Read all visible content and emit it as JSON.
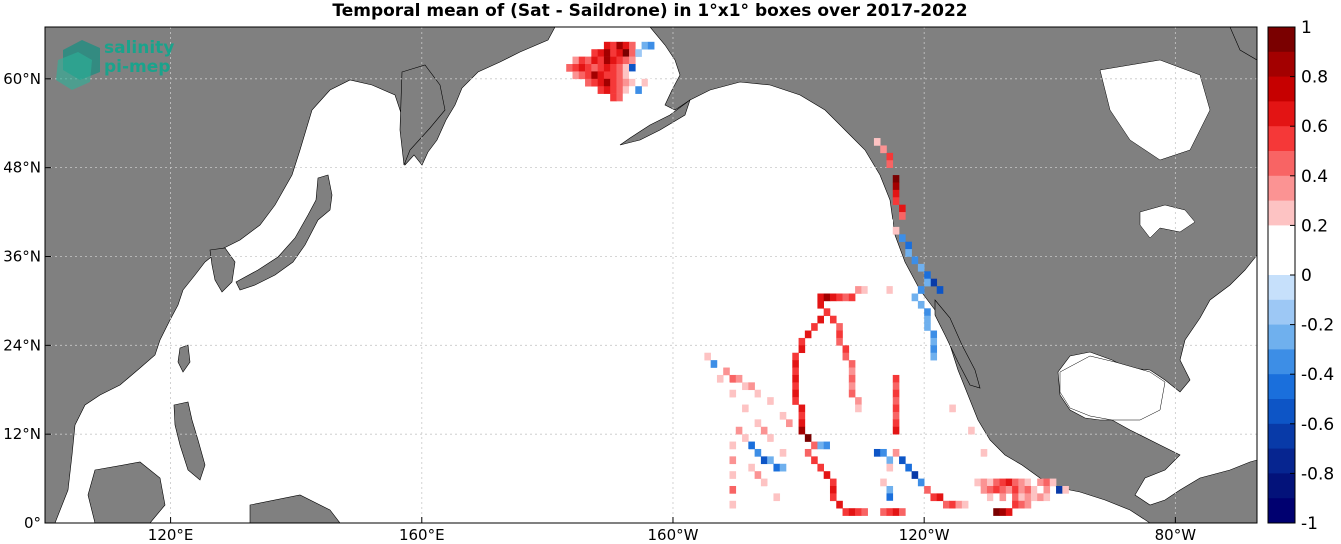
{
  "title": "Temporal mean of (Sat - Saildrone) in 1°x1° boxes over 2017-2022",
  "logo": {
    "line1": "salinity",
    "line2": "pi-mep"
  },
  "axes": {
    "lon_ticks": [
      {
        "value": 120,
        "label": "120°E"
      },
      {
        "value": 160,
        "label": "160°E"
      },
      {
        "value": 200,
        "label": "160°W"
      },
      {
        "value": 240,
        "label": "120°W"
      },
      {
        "value": 280,
        "label": "80°W"
      }
    ],
    "lat_ticks": [
      {
        "value": 0,
        "label": "0°"
      },
      {
        "value": 12,
        "label": "12°N"
      },
      {
        "value": 24,
        "label": "24°N"
      },
      {
        "value": 36,
        "label": "36°N"
      },
      {
        "value": 48,
        "label": "48°N"
      },
      {
        "value": 60,
        "label": "60°N"
      }
    ],
    "lon_range": [
      100,
      293
    ],
    "lat_range": [
      0,
      67
    ]
  },
  "colorbar": {
    "range": [
      -1,
      1
    ],
    "tick_labels": [
      "1",
      "0.8",
      "0.6",
      "0.4",
      "0.2",
      "0",
      "-0.2",
      "-0.4",
      "-0.6",
      "-0.8",
      "-1"
    ],
    "colors": [
      "#7a0000",
      "#a30000",
      "#c60000",
      "#e31414",
      "#f53838",
      "#f86464",
      "#fb9393",
      "#fdc3c3",
      "#ffffff",
      "#ffffff",
      "#c6e0fb",
      "#9dc8f5",
      "#6fb0ee",
      "#3d8ee6",
      "#1a6fdc",
      "#0d55c6",
      "#083aa8",
      "#062590",
      "#03127a",
      "#000070"
    ]
  },
  "colors": {
    "land": "#808080",
    "ocean": "#ffffff",
    "grid": "#c8c8c8"
  },
  "chart_data": {
    "type": "heatmap",
    "variable": "Sat - Saildrone",
    "cell_size_deg": 1,
    "cells": [
      [
        -171,
        64,
        0.7
      ],
      [
        -170,
        64,
        0.6
      ],
      [
        -169,
        64,
        0.8
      ],
      [
        -168,
        64,
        0.7
      ],
      [
        -167,
        64,
        0.5
      ],
      [
        -165,
        64,
        -0.2
      ],
      [
        -164,
        64,
        -0.3
      ],
      [
        -173,
        63,
        0.6
      ],
      [
        -172,
        63,
        0.7
      ],
      [
        -171,
        63,
        0.8
      ],
      [
        -170,
        63,
        0.6
      ],
      [
        -169,
        63,
        0.7
      ],
      [
        -168,
        63,
        0.9
      ],
      [
        -167,
        63,
        0.5
      ],
      [
        -166,
        63,
        -0.1
      ],
      [
        -176,
        62,
        0.4
      ],
      [
        -175,
        62,
        0.6
      ],
      [
        -174,
        62,
        0.5
      ],
      [
        -173,
        62,
        0.7
      ],
      [
        -172,
        62,
        0.6
      ],
      [
        -171,
        62,
        0.8
      ],
      [
        -170,
        62,
        0.7
      ],
      [
        -169,
        62,
        0.6
      ],
      [
        -168,
        62,
        0.5
      ],
      [
        -167,
        62,
        0.4
      ],
      [
        -177,
        61,
        0.5
      ],
      [
        -176,
        61,
        0.6
      ],
      [
        -175,
        61,
        0.7
      ],
      [
        -174,
        61,
        0.6
      ],
      [
        -173,
        61,
        0.5
      ],
      [
        -172,
        61,
        0.6
      ],
      [
        -171,
        61,
        0.7
      ],
      [
        -170,
        61,
        0.6
      ],
      [
        -169,
        61,
        0.5
      ],
      [
        -168,
        61,
        0.3
      ],
      [
        -167,
        61,
        -0.5
      ],
      [
        -176,
        60,
        0.4
      ],
      [
        -175,
        60,
        0.5
      ],
      [
        -174,
        60,
        0.6
      ],
      [
        -173,
        60,
        0.8
      ],
      [
        -172,
        60,
        0.7
      ],
      [
        -171,
        60,
        0.6
      ],
      [
        -170,
        60,
        0.6
      ],
      [
        -169,
        60,
        0.5
      ],
      [
        -168,
        60,
        0.3
      ],
      [
        -167,
        60,
        0.2
      ],
      [
        -174,
        59,
        0.5
      ],
      [
        -173,
        59,
        0.6
      ],
      [
        -172,
        59,
        0.7
      ],
      [
        -171,
        59,
        0.8
      ],
      [
        -170,
        59,
        0.6
      ],
      [
        -169,
        59,
        0.5
      ],
      [
        -168,
        59,
        0.4
      ],
      [
        -167,
        59,
        0.3
      ],
      [
        -166,
        59,
        0.2
      ],
      [
        -165,
        59,
        0.3
      ],
      [
        -164,
        59,
        0.2
      ],
      [
        -172,
        58,
        0.6
      ],
      [
        -171,
        58,
        0.7
      ],
      [
        -170,
        58,
        0.6
      ],
      [
        -169,
        58,
        0.5
      ],
      [
        -168,
        58,
        0.3
      ],
      [
        -167,
        58,
        0.2
      ],
      [
        -166,
        58,
        -0.3
      ],
      [
        -170,
        57,
        0.6
      ],
      [
        -169,
        57,
        0.5
      ],
      [
        -168,
        57,
        0.2
      ],
      [
        -128,
        51,
        0.3
      ],
      [
        -127,
        50,
        0.4
      ],
      [
        -126,
        49,
        0.6
      ],
      [
        -126,
        48,
        0.5
      ],
      [
        -125,
        46,
        0.9
      ],
      [
        -125,
        45,
        0.8
      ],
      [
        -125,
        44,
        0.7
      ],
      [
        -125,
        43,
        0.6
      ],
      [
        -124,
        42,
        0.7
      ],
      [
        -124,
        41,
        0.5
      ],
      [
        -126,
        40,
        0.2
      ],
      [
        -125,
        39,
        0.3
      ],
      [
        -124,
        38,
        -0.3
      ],
      [
        -123,
        37,
        -0.4
      ],
      [
        -123,
        36,
        -0.2
      ],
      [
        -122,
        35,
        -0.3
      ],
      [
        -121,
        34,
        -0.2
      ],
      [
        -120,
        33,
        -0.4
      ],
      [
        -119,
        32,
        -0.6
      ],
      [
        -118,
        31,
        -0.5
      ],
      [
        -120,
        32,
        -0.2
      ],
      [
        -121,
        31,
        -0.3
      ],
      [
        -122,
        30,
        -0.2
      ],
      [
        -121,
        29,
        -0.2
      ],
      [
        -120,
        28,
        -0.3
      ],
      [
        -120,
        27,
        -0.2
      ],
      [
        -120,
        26,
        -0.2
      ],
      [
        -119,
        25,
        -0.3
      ],
      [
        -119,
        24,
        -0.2
      ],
      [
        -119,
        23,
        -0.3
      ],
      [
        -119,
        22,
        -0.2
      ],
      [
        -131,
        31,
        0.4
      ],
      [
        -130,
        31,
        0.3
      ],
      [
        -129,
        31,
        0.2
      ],
      [
        -128,
        31,
        0.2
      ],
      [
        -127,
        31,
        0.2
      ],
      [
        -126,
        31,
        0.3
      ],
      [
        -125,
        31,
        0.2
      ],
      [
        -124,
        31,
        0.2
      ],
      [
        -137,
        30,
        0.7
      ],
      [
        -136,
        30,
        0.8
      ],
      [
        -135,
        30,
        0.7
      ],
      [
        -134,
        30,
        0.6
      ],
      [
        -133,
        30,
        0.5
      ],
      [
        -132,
        30,
        0.6
      ],
      [
        -137,
        29,
        0.7
      ],
      [
        -136,
        28,
        0.6
      ],
      [
        -137,
        27,
        0.7
      ],
      [
        -138,
        26,
        0.6
      ],
      [
        -139,
        25,
        0.7
      ],
      [
        -140,
        24,
        0.6
      ],
      [
        -140,
        23,
        0.7
      ],
      [
        -141,
        22,
        0.6
      ],
      [
        -141,
        21,
        0.7
      ],
      [
        -141,
        20,
        0.6
      ],
      [
        -141,
        19,
        0.7
      ],
      [
        -141,
        18,
        0.6
      ],
      [
        -141,
        17,
        0.7
      ],
      [
        -141,
        16,
        0.6
      ],
      [
        -140,
        15,
        0.7
      ],
      [
        -140,
        14,
        0.6
      ],
      [
        -140,
        13,
        0.7
      ],
      [
        -140,
        12,
        0.8
      ],
      [
        -139,
        11,
        0.9
      ],
      [
        -135,
        27,
        0.6
      ],
      [
        -134,
        26,
        0.5
      ],
      [
        -134,
        25,
        0.6
      ],
      [
        -134,
        24,
        0.5
      ],
      [
        -133,
        23,
        0.6
      ],
      [
        -133,
        22,
        0.5
      ],
      [
        -132,
        21,
        0.5
      ],
      [
        -132,
        20,
        0.4
      ],
      [
        -132,
        19,
        0.5
      ],
      [
        -132,
        18,
        0.4
      ],
      [
        -132,
        17,
        0.5
      ],
      [
        -131,
        16,
        0.4
      ],
      [
        -131,
        15,
        0.3
      ],
      [
        -125,
        19,
        0.6
      ],
      [
        -125,
        18,
        0.5
      ],
      [
        -125,
        17,
        0.6
      ],
      [
        -125,
        16,
        0.5
      ],
      [
        -125,
        15,
        0.6
      ],
      [
        -125,
        14,
        0.5
      ],
      [
        -125,
        13,
        0.6
      ],
      [
        -125,
        12,
        0.7
      ],
      [
        -156,
        22,
        0.2
      ],
      [
        -155,
        22,
        0.3
      ],
      [
        -154,
        21,
        -0.3
      ],
      [
        -153,
        20,
        0.2
      ],
      [
        -152,
        20,
        0.4
      ],
      [
        -151,
        19,
        0.5
      ],
      [
        -150,
        19,
        0.4
      ],
      [
        -149,
        18,
        0.3
      ],
      [
        -148,
        18,
        0.4
      ],
      [
        -147,
        17,
        0.3
      ],
      [
        -146,
        17,
        0.2
      ],
      [
        -145,
        16,
        0.3
      ],
      [
        -144,
        15,
        0.2
      ],
      [
        -143,
        14,
        0.3
      ],
      [
        -142,
        13,
        0.4
      ],
      [
        -153,
        19,
        0.3
      ],
      [
        -152,
        18,
        0.2
      ],
      [
        -151,
        17,
        0.3
      ],
      [
        -150,
        16,
        0.2
      ],
      [
        -149,
        15,
        0.3
      ],
      [
        -148,
        14,
        0.2
      ],
      [
        -147,
        13,
        0.3
      ],
      [
        -146,
        12,
        0.4
      ],
      [
        -145,
        11,
        0.3
      ],
      [
        -144,
        10,
        0.2
      ],
      [
        -143,
        9,
        0.3
      ],
      [
        -150,
        12,
        0.4
      ],
      [
        -149,
        11,
        0.3
      ],
      [
        -148,
        10,
        -0.4
      ],
      [
        -147,
        9,
        -0.3
      ],
      [
        -146,
        8,
        -0.5
      ],
      [
        -145,
        8,
        -0.2
      ],
      [
        -144,
        7,
        -0.4
      ],
      [
        -143,
        7,
        -0.2
      ],
      [
        -149,
        9,
        0.2
      ],
      [
        -148,
        7,
        0.3
      ],
      [
        -147,
        6,
        0.4
      ],
      [
        -146,
        5,
        0.3
      ],
      [
        -145,
        4,
        0.2
      ],
      [
        -144,
        3,
        0.3
      ],
      [
        -143,
        2,
        0.2
      ],
      [
        -151,
        10,
        0.3
      ],
      [
        -151,
        8,
        0.4
      ],
      [
        -151,
        6,
        0.3
      ],
      [
        -151,
        4,
        0.5
      ],
      [
        -151,
        2,
        0.3
      ],
      [
        -139,
        9,
        0.5
      ],
      [
        -138,
        8,
        0.6
      ],
      [
        -137,
        7,
        0.6
      ],
      [
        -136,
        6,
        0.7
      ],
      [
        -135,
        5,
        0.6
      ],
      [
        -135,
        4,
        0.7
      ],
      [
        -135,
        3,
        0.6
      ],
      [
        -134,
        2,
        0.7
      ],
      [
        -133,
        1,
        0.6
      ],
      [
        -132,
        1,
        0.7
      ],
      [
        -131,
        1,
        0.6
      ],
      [
        -130,
        1,
        0.5
      ],
      [
        -138,
        10,
        0.5
      ],
      [
        -137,
        10,
        -0.2
      ],
      [
        -136,
        10,
        -0.3
      ],
      [
        -135,
        10,
        0.2
      ],
      [
        -128,
        9,
        -0.5
      ],
      [
        -127,
        9,
        -0.3
      ],
      [
        -126,
        8,
        -0.2
      ],
      [
        -126,
        7,
        0.3
      ],
      [
        -127,
        6,
        0.2
      ],
      [
        -127,
        5,
        0.3
      ],
      [
        -126,
        4,
        -0.2
      ],
      [
        -126,
        3,
        -0.4
      ],
      [
        -126,
        2,
        0.2
      ],
      [
        -127,
        1,
        0.5
      ],
      [
        -126,
        1,
        0.6
      ],
      [
        -125,
        1,
        0.7
      ],
      [
        -124,
        1,
        0.5
      ],
      [
        -125,
        9,
        0.4
      ],
      [
        -124,
        8,
        -0.5
      ],
      [
        -123,
        7,
        -0.4
      ],
      [
        -122,
        6,
        -0.6
      ],
      [
        -121,
        5,
        -0.3
      ],
      [
        -120,
        4,
        0.5
      ],
      [
        -119,
        3,
        0.6
      ],
      [
        -118,
        3,
        0.7
      ],
      [
        -117,
        2,
        0.5
      ],
      [
        -116,
        2,
        0.6
      ],
      [
        -115,
        2,
        0.4
      ],
      [
        -114,
        2,
        0.3
      ],
      [
        -117,
        16,
        0.2
      ],
      [
        -116,
        15,
        0.3
      ],
      [
        -115,
        14,
        0.2
      ],
      [
        -114,
        13,
        0.2
      ],
      [
        -113,
        12,
        0.3
      ],
      [
        -112,
        10,
        0.2
      ],
      [
        -111,
        9,
        0.3
      ],
      [
        -110,
        8,
        0.2
      ],
      [
        -112,
        5,
        0.3
      ],
      [
        -111,
        5,
        0.4
      ],
      [
        -110,
        5,
        0.3
      ],
      [
        -109,
        5,
        0.5
      ],
      [
        -108,
        5,
        0.6
      ],
      [
        -107,
        5,
        0.7
      ],
      [
        -106,
        5,
        0.5
      ],
      [
        -105,
        5,
        0.4
      ],
      [
        -104,
        5,
        0.3
      ],
      [
        -103,
        5,
        0.2
      ],
      [
        -102,
        5,
        0.4
      ],
      [
        -101,
        5,
        0.5
      ],
      [
        -100,
        5,
        0.3
      ],
      [
        -111,
        4,
        0.4
      ],
      [
        -110,
        4,
        0.5
      ],
      [
        -109,
        4,
        0.6
      ],
      [
        -108,
        4,
        0.5
      ],
      [
        -107,
        4,
        0.4
      ],
      [
        -106,
        4,
        0.6
      ],
      [
        -105,
        4,
        0.4
      ],
      [
        -104,
        4,
        0.5
      ],
      [
        -103,
        4,
        0.3
      ],
      [
        -102,
        4,
        0.2
      ],
      [
        -101,
        4,
        0.4
      ],
      [
        -99,
        4,
        -0.6
      ],
      [
        -98,
        4,
        0.3
      ],
      [
        -110,
        3,
        0.3
      ],
      [
        -109,
        3,
        0.2
      ],
      [
        -108,
        3,
        0.4
      ],
      [
        -106,
        3,
        0.5
      ],
      [
        -105,
        3,
        0.3
      ],
      [
        -104,
        3,
        0.4
      ],
      [
        -103,
        3,
        0.3
      ],
      [
        -102,
        3,
        0.4
      ],
      [
        -101,
        3,
        0.3
      ],
      [
        -109,
        1,
        0.9
      ],
      [
        -108,
        1,
        0.8
      ],
      [
        -107,
        1,
        0.7
      ],
      [
        -106,
        2,
        0.6
      ],
      [
        -105,
        2,
        0.5
      ],
      [
        -104,
        2,
        0.4
      ]
    ]
  }
}
